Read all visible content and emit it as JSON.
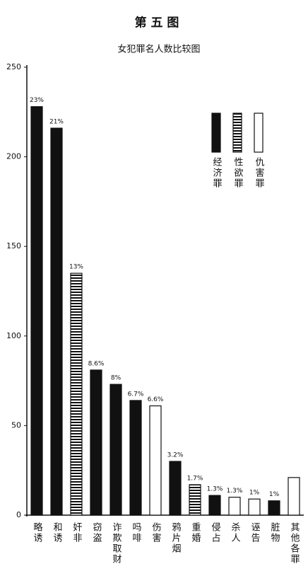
{
  "chart_data": {
    "type": "bar",
    "title": "第 五 图",
    "subtitle": "女犯罪名人数比较图",
    "categories": [
      "略诱",
      "和诱",
      "奸非",
      "窃盗",
      "诈欺取财",
      "吗啡",
      "伤害",
      "鸦片烟",
      "重婚",
      "侵占",
      "杀人",
      "诬告",
      "脏物",
      "其他各罪"
    ],
    "series": [
      {
        "name": "经济罪",
        "color": "#111111",
        "pattern": "solid",
        "values": [
          228,
          216,
          null,
          81,
          73,
          64,
          null,
          30,
          null,
          11,
          null,
          null,
          8,
          null
        ],
        "value_labels": [
          "23%",
          "21%",
          null,
          "8.6%",
          "8%",
          "6.7%",
          null,
          "3.2%",
          null,
          "1.3%",
          null,
          null,
          "1%",
          null
        ]
      },
      {
        "name": "性欲罪",
        "color": "#111111",
        "pattern": "stripes",
        "values": [
          null,
          null,
          135,
          null,
          null,
          null,
          null,
          null,
          17,
          null,
          null,
          null,
          null,
          null
        ],
        "value_labels": [
          null,
          null,
          "13%",
          null,
          null,
          null,
          null,
          null,
          "1.7%",
          null,
          null,
          null,
          null,
          null
        ]
      },
      {
        "name": "仇害罪",
        "color": "#ffffff",
        "pattern": "outline",
        "values": [
          null,
          null,
          null,
          null,
          null,
          null,
          61,
          null,
          null,
          null,
          10,
          9,
          null,
          21
        ],
        "value_labels": [
          null,
          null,
          null,
          null,
          null,
          null,
          "6.6%",
          null,
          null,
          null,
          "1.3%",
          "1%",
          null,
          null
        ]
      }
    ],
    "ylim": [
      0,
      250
    ],
    "yticks": [
      0,
      50,
      100,
      150,
      200,
      250
    ]
  }
}
